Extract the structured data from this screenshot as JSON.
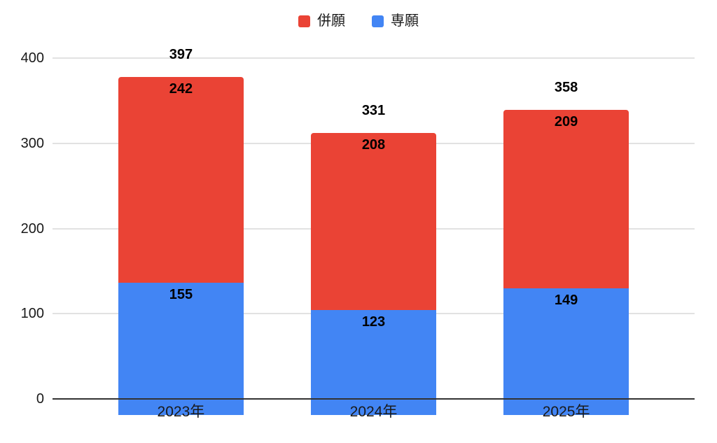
{
  "chart_data": {
    "type": "bar",
    "stacked": true,
    "title": "",
    "xlabel": "",
    "ylabel": "",
    "categories": [
      "2023年",
      "2024年",
      "2025年"
    ],
    "series": [
      {
        "name": "併願",
        "color": "#EA4335",
        "values": [
          242,
          208,
          209
        ]
      },
      {
        "name": "専願",
        "color": "#4285F4",
        "values": [
          155,
          123,
          149
        ]
      }
    ],
    "totals": [
      397,
      331,
      358
    ],
    "ylim": [
      0,
      400
    ],
    "yticks": [
      0,
      100,
      200,
      300,
      400
    ],
    "grid": true,
    "legend_position": "top"
  },
  "colors": {
    "background": "#ffffff",
    "gridline": "#e2e2e2",
    "baseline": "#333333",
    "axis_text": "#1a1a1a",
    "data_label": "#000000"
  }
}
